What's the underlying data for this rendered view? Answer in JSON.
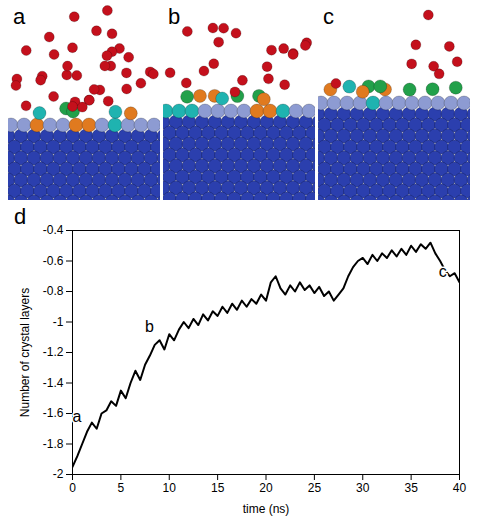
{
  "chart_data": {
    "type": "line",
    "panel_labels": [
      "a",
      "b",
      "c",
      "d"
    ],
    "x_label": "time (ns)",
    "y_label": "Number of crystal layers",
    "x": [
      0,
      0.5,
      1,
      1.5,
      2,
      2.5,
      3,
      3.5,
      4,
      4.5,
      5,
      5.5,
      6,
      6.5,
      7,
      7.5,
      8,
      8.5,
      9,
      9.5,
      10,
      10.5,
      11,
      11.5,
      12,
      12.5,
      13,
      13.5,
      14,
      14.5,
      15,
      15.5,
      16,
      16.5,
      17,
      17.5,
      18,
      18.5,
      19,
      19.5,
      20,
      20.5,
      21,
      21.5,
      22,
      22.5,
      23,
      23.5,
      24,
      24.5,
      25,
      25.5,
      26,
      26.5,
      27,
      27.5,
      28,
      28.5,
      29,
      29.5,
      30,
      30.5,
      31,
      31.5,
      32,
      32.5,
      33,
      33.5,
      34,
      34.5,
      35,
      35.5,
      36,
      36.5,
      37,
      37.5,
      38,
      38.5,
      39,
      39.5,
      40
    ],
    "values": [
      -1.95,
      -1.88,
      -1.8,
      -1.72,
      -1.66,
      -1.7,
      -1.6,
      -1.58,
      -1.52,
      -1.55,
      -1.45,
      -1.5,
      -1.4,
      -1.32,
      -1.38,
      -1.28,
      -1.22,
      -1.15,
      -1.12,
      -1.18,
      -1.08,
      -1.12,
      -1.05,
      -1.0,
      -1.04,
      -0.98,
      -1.02,
      -0.95,
      -0.99,
      -0.93,
      -0.96,
      -0.9,
      -0.94,
      -0.88,
      -0.92,
      -0.86,
      -0.9,
      -0.85,
      -0.88,
      -0.82,
      -0.86,
      -0.74,
      -0.7,
      -0.78,
      -0.82,
      -0.76,
      -0.8,
      -0.74,
      -0.79,
      -0.76,
      -0.81,
      -0.77,
      -0.83,
      -0.8,
      -0.86,
      -0.82,
      -0.78,
      -0.7,
      -0.64,
      -0.6,
      -0.58,
      -0.62,
      -0.56,
      -0.6,
      -0.55,
      -0.58,
      -0.53,
      -0.57,
      -0.52,
      -0.56,
      -0.5,
      -0.54,
      -0.49,
      -0.52,
      -0.48,
      -0.55,
      -0.6,
      -0.66,
      -0.7,
      -0.68,
      -0.74
    ],
    "color": "#000000",
    "xlim": [
      0,
      40
    ],
    "xticks": [
      0,
      5,
      10,
      15,
      20,
      25,
      30,
      35,
      40
    ],
    "ylim": [
      -2,
      -0.4
    ],
    "yticks": [
      -2,
      -1.8,
      -1.6,
      -1.4,
      -1.2,
      -1,
      -0.8,
      -0.6,
      -0.4
    ],
    "annotations": [
      {
        "text": "a",
        "x": 1.5,
        "y": -1.65
      },
      {
        "text": "b",
        "x": 9,
        "y": -1.06
      },
      {
        "text": "c",
        "x": 39.3,
        "y": -0.7
      }
    ]
  }
}
